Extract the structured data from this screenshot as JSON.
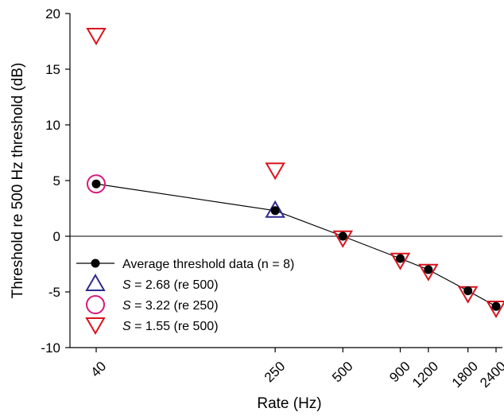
{
  "chart_data": {
    "type": "scatter",
    "xlabel": "Rate (Hz)",
    "ylabel": "Threshold re 500 Hz threshold (dB)",
    "x_scale": "log",
    "xlim": [
      40,
      2400
    ],
    "ylim": [
      -10,
      20
    ],
    "x_ticks": [
      40,
      250,
      500,
      900,
      1200,
      1800,
      2400
    ],
    "x_tick_labels": [
      "40",
      "250",
      "500",
      "900",
      "1200",
      "1800",
      "2400"
    ],
    "y_ticks": [
      -10,
      -5,
      0,
      5,
      10,
      15,
      20
    ],
    "y_tick_labels": [
      "-10",
      "-5",
      "0",
      "5",
      "10",
      "15",
      "20"
    ],
    "reference_line_y": 0,
    "legend_position": "lower-left",
    "series": [
      {
        "name": "Average threshold data (n = 8)",
        "marker": "filled-circle-line",
        "color": "#000000",
        "points": [
          {
            "x": 40,
            "y": 4.7
          },
          {
            "x": 250,
            "y": 2.3
          },
          {
            "x": 500,
            "y": 0.0
          },
          {
            "x": 900,
            "y": -2.0
          },
          {
            "x": 1200,
            "y": -3.0
          },
          {
            "x": 1800,
            "y": -4.9
          },
          {
            "x": 2400,
            "y": -6.3
          }
        ]
      },
      {
        "name_italic": "S",
        "name_rest": " = 2.68 (re 500)",
        "marker": "triangle-up",
        "color": "#2e2a8c",
        "points": [
          {
            "x": 250,
            "y": 2.3
          }
        ]
      },
      {
        "name_italic": "S",
        "name_rest": " = 3.22 (re 250)",
        "marker": "circle",
        "color": "#d6197a",
        "points": [
          {
            "x": 40,
            "y": 4.7
          }
        ]
      },
      {
        "name_italic": "S",
        "name_rest": " = 1.55 (re 500)",
        "marker": "triangle-down",
        "color": "#d8141e",
        "points": [
          {
            "x": 40,
            "y": 18.0
          },
          {
            "x": 250,
            "y": 5.9
          },
          {
            "x": 500,
            "y": -0.2
          },
          {
            "x": 900,
            "y": -2.2
          },
          {
            "x": 1200,
            "y": -3.2
          },
          {
            "x": 1800,
            "y": -5.2
          },
          {
            "x": 2400,
            "y": -6.5
          }
        ]
      }
    ]
  }
}
